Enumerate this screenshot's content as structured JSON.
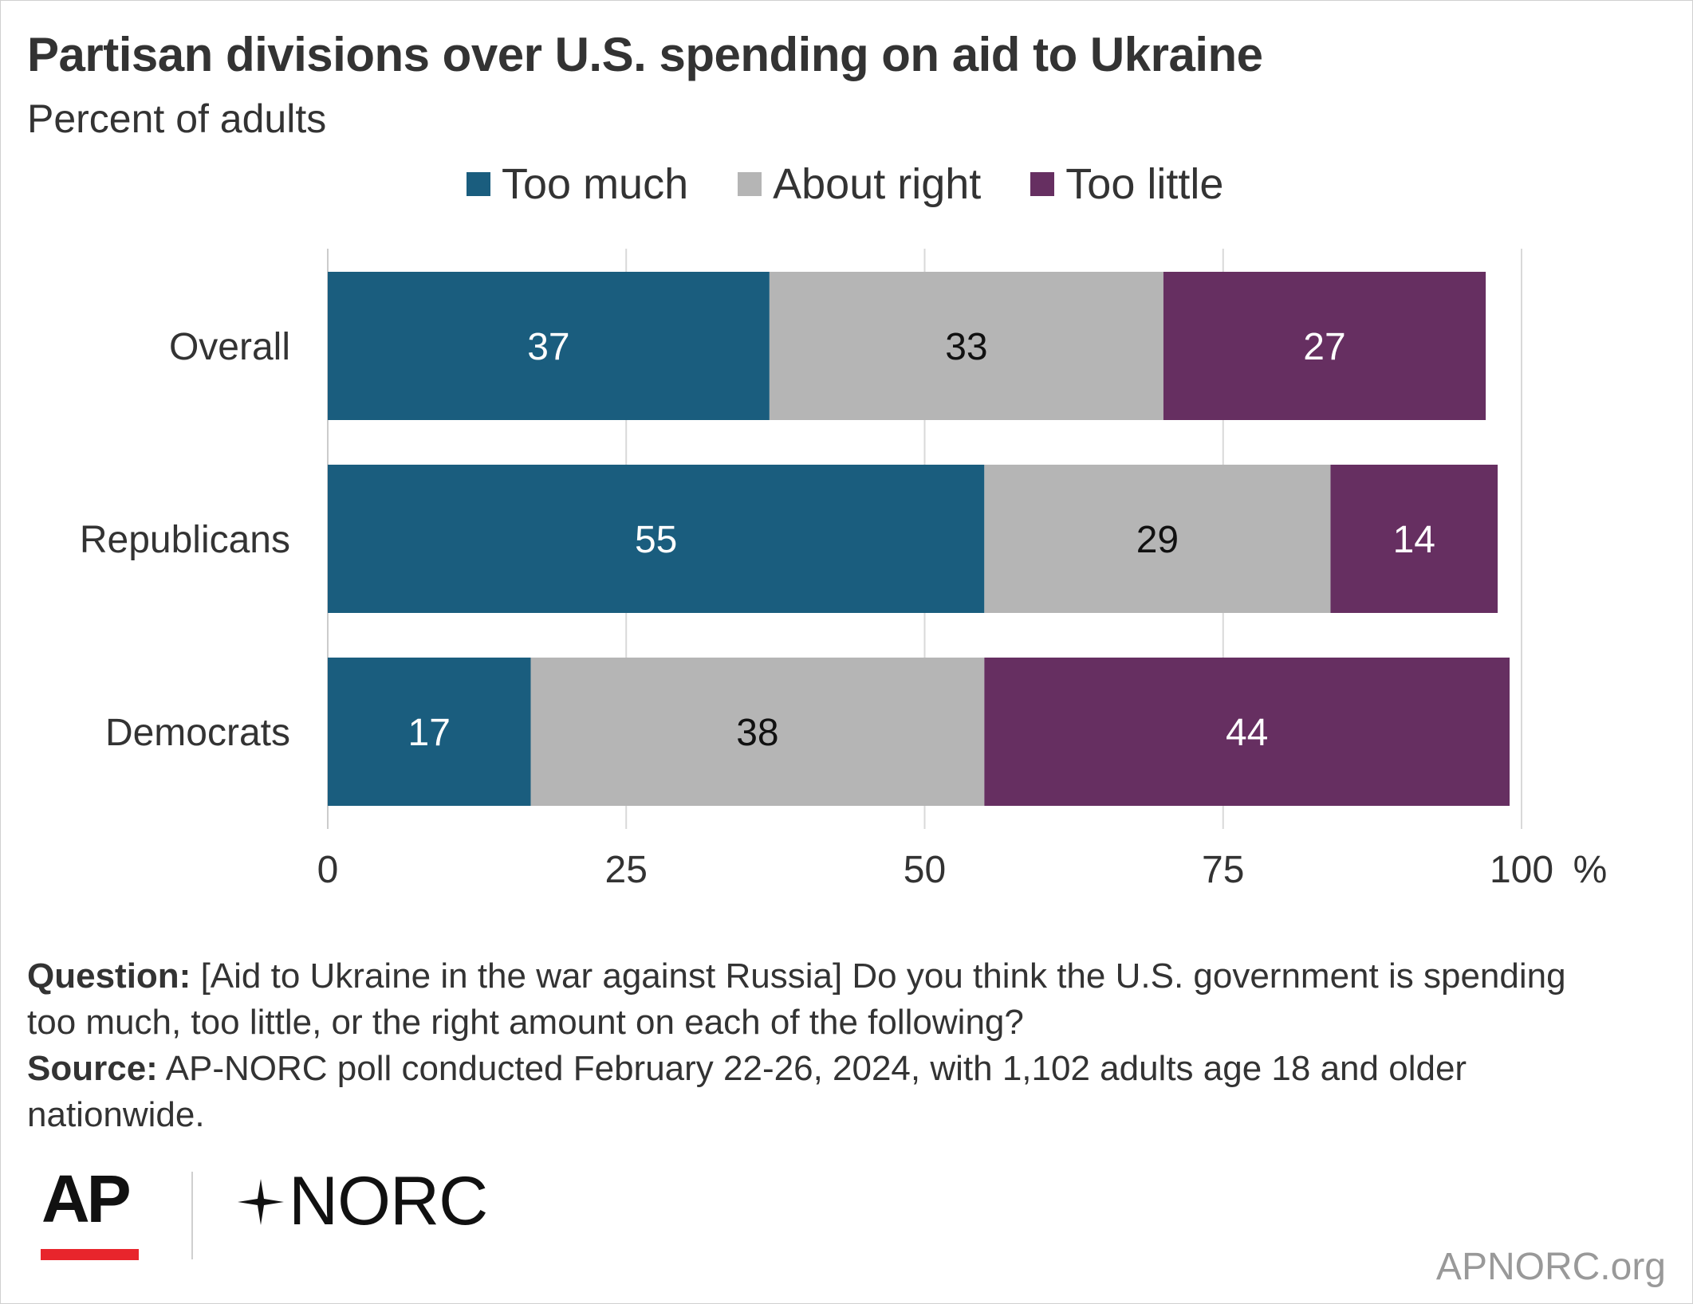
{
  "chart_data": {
    "type": "bar",
    "orientation": "horizontal",
    "stacked": true,
    "title": "Partisan divisions over U.S. spending on aid to Ukraine",
    "subtitle": "Percent of adults",
    "categories": [
      "Overall",
      "Republicans",
      "Democrats"
    ],
    "series": [
      {
        "name": "Too much",
        "values": [
          37,
          55,
          17
        ],
        "color": "#1a5d7e",
        "label_color": "#ffffff"
      },
      {
        "name": "About right",
        "values": [
          33,
          29,
          38
        ],
        "color": "#b5b5b5",
        "label_color": "#111111"
      },
      {
        "name": "Too little",
        "values": [
          27,
          14,
          44
        ],
        "color": "#662f61",
        "label_color": "#ffffff"
      }
    ],
    "xlim": [
      0,
      100
    ],
    "x_ticks": [
      0,
      25,
      50,
      75,
      100
    ],
    "x_tick_labels": [
      "0",
      "25",
      "50",
      "75",
      "100"
    ],
    "x_unit": "%",
    "grid": true,
    "legend_position": "top"
  },
  "footer": {
    "question_label": "Question:",
    "question_text": "[Aid to Ukraine in the war against Russia] Do you think the U.S. government is spending too much, too little, or the right amount on each of the following?",
    "source_label": "Source:",
    "source_text": "AP-NORC poll conducted February 22-26, 2024, with 1,102 adults age 18 and older nationwide."
  },
  "logos": {
    "ap": "AP",
    "norc": "NORC",
    "norc_icon": "star-icon"
  },
  "site": "APNORC.org"
}
